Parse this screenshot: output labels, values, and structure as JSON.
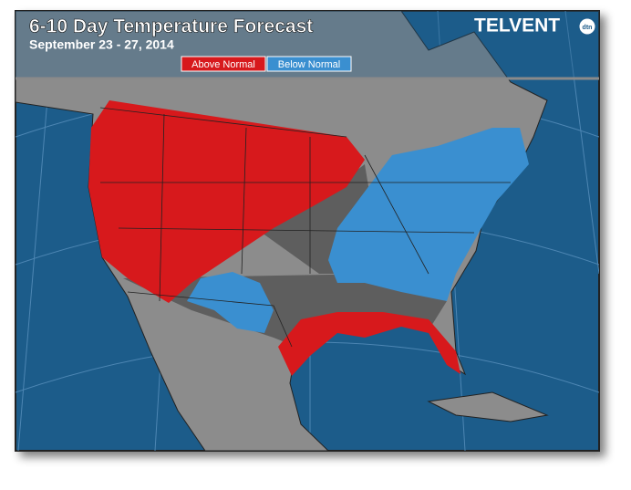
{
  "header": {
    "title": "6-10 Day Temperature Forecast",
    "subtitle": "September 23 - 27, 2014",
    "logo": "TELVENT",
    "logo_badge": "dtn"
  },
  "legend": [
    {
      "label": "Above Normal",
      "color": "#d7191c"
    },
    {
      "label": "Below Normal",
      "color": "#3a8fd0"
    }
  ]
}
